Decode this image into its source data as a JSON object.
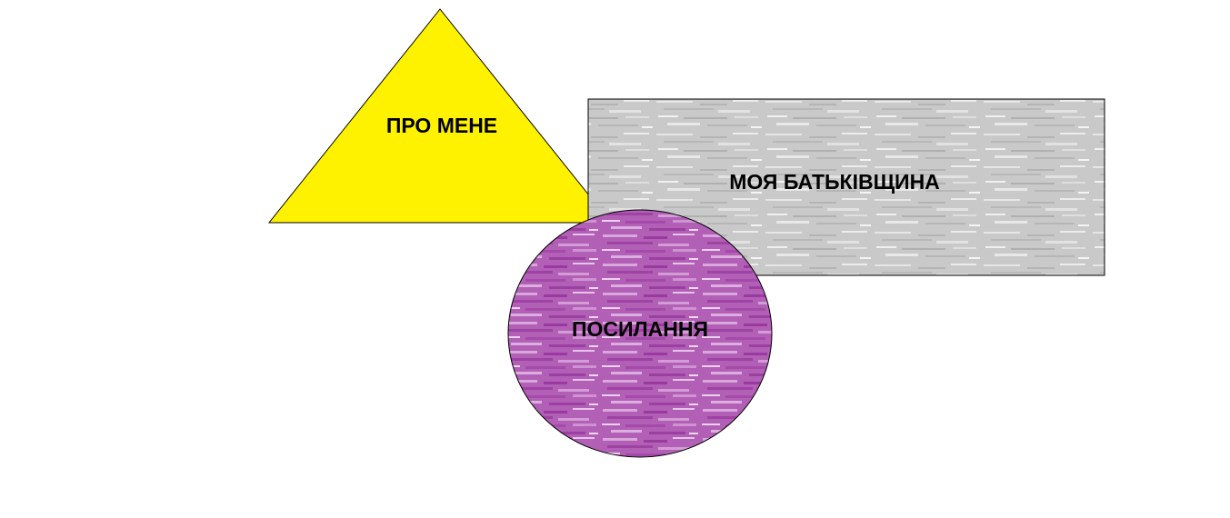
{
  "shapes": {
    "about": {
      "label": "ПРО МЕНЕ",
      "fill": "#fff200",
      "stroke": "#000000"
    },
    "homeland": {
      "label": "МОЯ БАТЬКІВЩИНА",
      "fill": "#c7c7c7",
      "stroke": "#000000"
    },
    "links": {
      "label": "ПОСИЛАННЯ",
      "fill": "#b560b8",
      "stroke": "#000000"
    }
  }
}
